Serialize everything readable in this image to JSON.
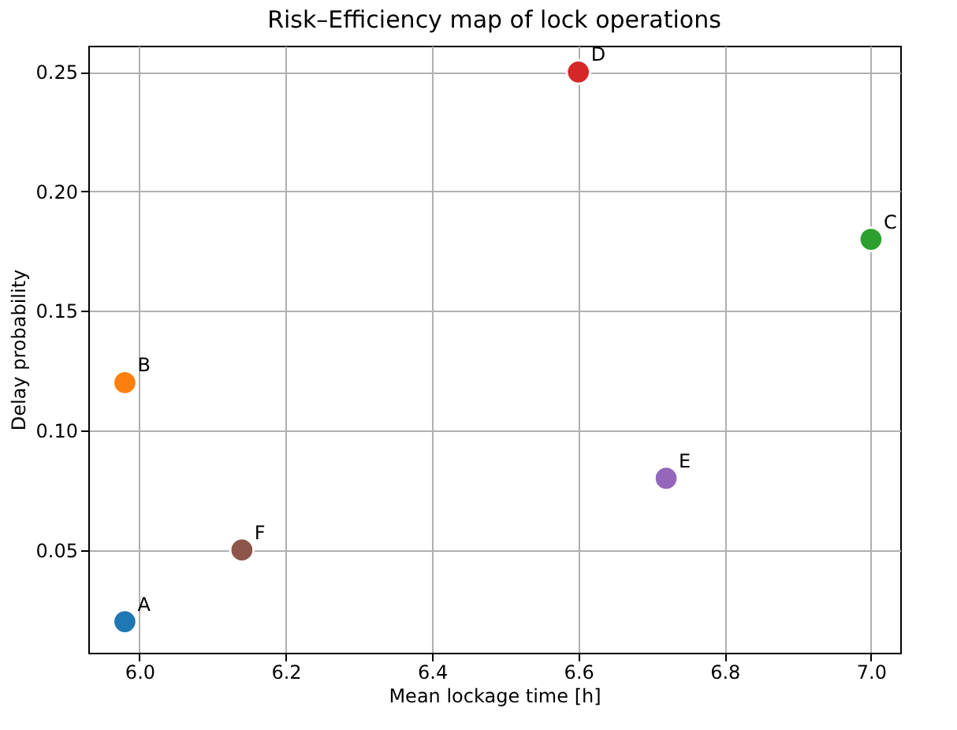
{
  "chart_data": {
    "type": "scatter",
    "title": "Risk–Efficiency map of lock operations",
    "xlabel": "Mean lockage time [h]",
    "ylabel": "Delay probability",
    "x": [
      5.98,
      5.98,
      7.0,
      6.6,
      6.72,
      6.14
    ],
    "values": [
      0.02,
      0.12,
      0.18,
      0.25,
      0.08,
      0.05
    ],
    "colors": [
      "#1f77b4",
      "#ff7f0e",
      "#2ca02c",
      "#d62728",
      "#9467bd",
      "#8c564b"
    ],
    "annotations": [
      {
        "text": "A",
        "x": 5.98,
        "y": 0.02
      },
      {
        "text": "B",
        "x": 5.98,
        "y": 0.12
      },
      {
        "text": "C",
        "x": 7.0,
        "y": 0.18
      },
      {
        "text": "D",
        "x": 6.6,
        "y": 0.25
      },
      {
        "text": "E",
        "x": 6.72,
        "y": 0.08
      },
      {
        "text": "F",
        "x": 6.14,
        "y": 0.05
      }
    ],
    "xlim": [
      5.93,
      7.04
    ],
    "ylim": [
      0.007,
      0.261
    ],
    "xticks": [
      {
        "value": 6.0,
        "label": "6.0"
      },
      {
        "value": 6.2,
        "label": "6.2"
      },
      {
        "value": 6.4,
        "label": "6.4"
      },
      {
        "value": 6.6,
        "label": "6.6"
      },
      {
        "value": 6.8,
        "label": "6.8"
      },
      {
        "value": 7.0,
        "label": "7.0"
      }
    ],
    "yticks": [
      {
        "value": 0.05,
        "label": "0.05"
      },
      {
        "value": 0.1,
        "label": "0.10"
      },
      {
        "value": 0.15,
        "label": "0.15"
      },
      {
        "value": 0.2,
        "label": "0.20"
      },
      {
        "value": 0.25,
        "label": "0.25"
      }
    ],
    "grid": true,
    "marker": "circle"
  }
}
